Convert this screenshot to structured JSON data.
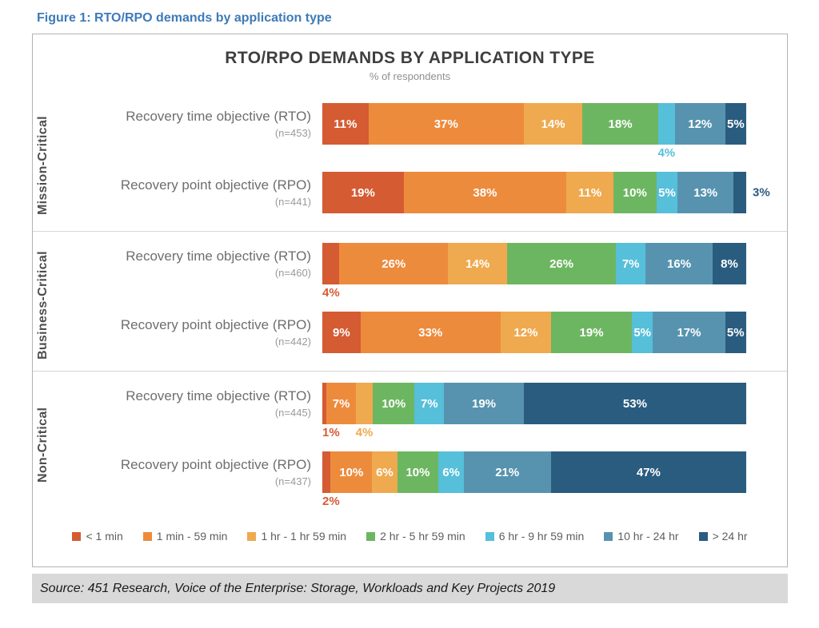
{
  "figure_caption": "Figure 1: RTO/RPO demands by application type",
  "source": "Source: 451 Research, Voice of the Enterprise: Storage, Workloads and Key Projects 2019",
  "chart_data": {
    "type": "bar",
    "stacked": true,
    "orientation": "horizontal",
    "title": "RTO/RPO DEMANDS BY APPLICATION TYPE",
    "subtitle": "% of respondents",
    "legend_position": "bottom",
    "axis_range_percent": [
      0,
      100
    ],
    "grid": false,
    "categories": [
      "< 1 min",
      "1 min - 59 min",
      "1 hr - 1 hr 59 min",
      "2 hr - 5 hr 59 min",
      "6 hr - 9 hr 59 min",
      "10 hr - 24 hr",
      "> 24 hr"
    ],
    "palette": [
      "#D55B33",
      "#ED8B3D",
      "#EFA94E",
      "#6DB661",
      "#56BFDA",
      "#5793AF",
      "#2A5C7F"
    ],
    "groups": [
      {
        "label": "Mission-Critical",
        "rows": [
          {
            "label": "Recovery time objective (RTO)",
            "n": "(n=453)",
            "values": [
              11,
              37,
              14,
              18,
              4,
              12,
              5
            ],
            "label_pos": [
              "inside",
              "inside",
              "inside",
              "inside",
              "below",
              "inside",
              "inside"
            ]
          },
          {
            "label": "Recovery point objective (RPO)",
            "n": "(n=441)",
            "values": [
              19,
              38,
              11,
              10,
              5,
              13,
              3
            ],
            "label_pos": [
              "inside",
              "inside",
              "inside",
              "inside",
              "inside",
              "inside",
              "right"
            ]
          }
        ]
      },
      {
        "label": "Business-Critical",
        "rows": [
          {
            "label": "Recovery time objective (RTO)",
            "n": "(n=460)",
            "values": [
              4,
              26,
              14,
              26,
              7,
              16,
              8
            ],
            "label_pos": [
              "below",
              "inside",
              "inside",
              "inside",
              "inside",
              "inside",
              "inside"
            ]
          },
          {
            "label": "Recovery point objective (RPO)",
            "n": "(n=442)",
            "values": [
              9,
              33,
              12,
              19,
              5,
              17,
              5
            ],
            "label_pos": [
              "inside",
              "inside",
              "inside",
              "inside",
              "inside",
              "inside",
              "inside"
            ]
          }
        ]
      },
      {
        "label": "Non-Critical",
        "rows": [
          {
            "label": "Recovery time objective (RTO)",
            "n": "(n=445)",
            "values": [
              1,
              7,
              4,
              10,
              7,
              19,
              53
            ],
            "label_pos": [
              "below",
              "inside",
              "below",
              "inside",
              "inside",
              "inside",
              "inside"
            ]
          },
          {
            "label": "Recovery point objective (RPO)",
            "n": "(n=437)",
            "values": [
              2,
              10,
              6,
              10,
              6,
              21,
              47
            ],
            "label_pos": [
              "below",
              "inside",
              "inside",
              "inside",
              "inside",
              "inside",
              "inside"
            ]
          }
        ]
      }
    ]
  }
}
